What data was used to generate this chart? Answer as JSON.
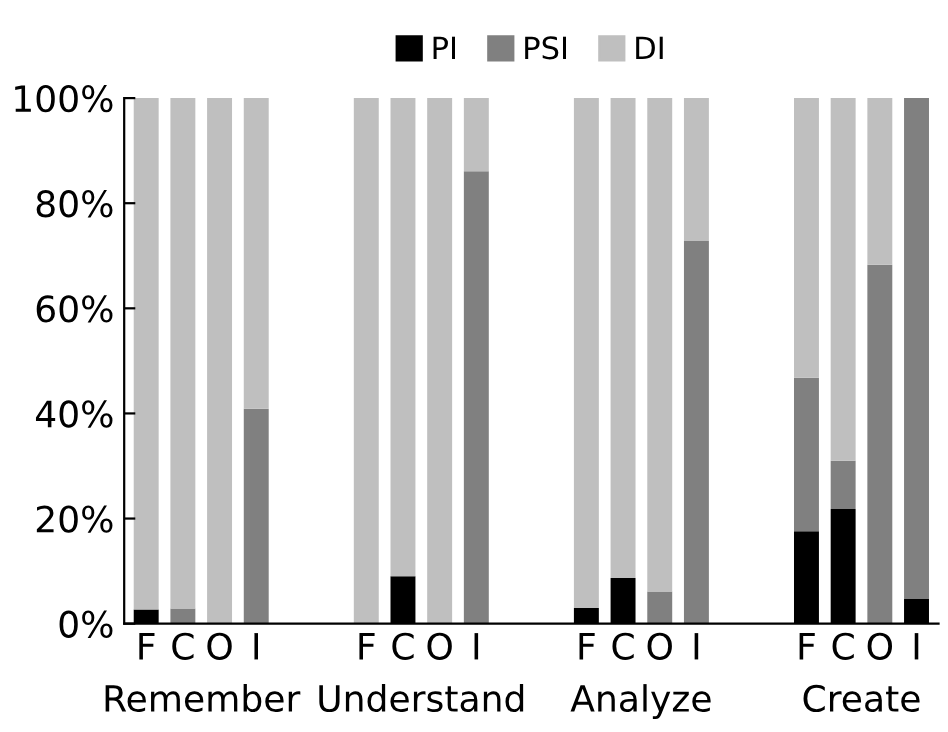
{
  "chart_data": {
    "type": "bar",
    "stacked": true,
    "categories": [
      "F",
      "C",
      "O",
      "I",
      null,
      null,
      "F",
      "C",
      "O",
      "I",
      null,
      null,
      "F",
      "C",
      "O",
      "I",
      null,
      null,
      "F",
      "C",
      "O",
      "I"
    ],
    "series": [
      {
        "name": "PI",
        "color": "#000000",
        "values": [
          2.7,
          0,
          0,
          0,
          null,
          null,
          0,
          9,
          0,
          0,
          null,
          null,
          3,
          8.7,
          0,
          0,
          null,
          null,
          17.6,
          21.8,
          0,
          4.7
        ]
      },
      {
        "name": "PSI",
        "color": "#808080",
        "values": [
          0,
          2.9,
          0,
          40.9,
          null,
          null,
          0,
          0,
          0,
          86.1,
          null,
          null,
          0,
          0,
          6.1,
          72.8,
          null,
          null,
          29.2,
          9.2,
          68.3,
          95.3
        ]
      },
      {
        "name": "DI",
        "color": "#bfbfbf",
        "values": [
          97.3,
          97.1,
          100,
          59.1,
          null,
          null,
          100,
          91,
          100,
          13.9,
          null,
          null,
          97,
          91.3,
          93.9,
          27.2,
          null,
          null,
          53.2,
          69,
          31.7,
          0
        ]
      }
    ],
    "annotations": [
      "Remember",
      "Understand",
      "Analyze",
      "Create"
    ],
    "ylim": [
      0,
      100
    ],
    "yticks": [
      {
        "value": 0,
        "label": "0%"
      },
      {
        "value": 20,
        "label": "20%"
      },
      {
        "value": 40,
        "label": "40%"
      },
      {
        "value": 60,
        "label": "60%"
      },
      {
        "value": 80,
        "label": "80%"
      },
      {
        "value": 100,
        "label": "100%"
      }
    ],
    "legend": "top"
  }
}
